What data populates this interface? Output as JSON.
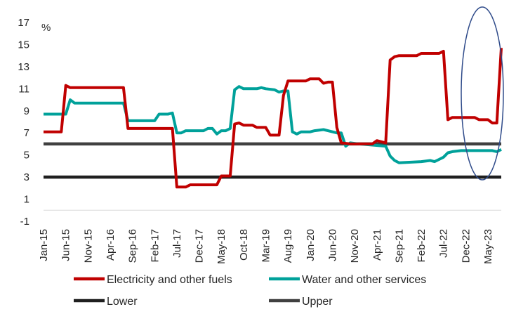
{
  "chart_data": {
    "type": "line",
    "ylabel": "%",
    "ylim": [
      -1,
      17
    ],
    "yticks": [
      "-1",
      "1",
      "3",
      "5",
      "7",
      "9",
      "11",
      "13",
      "15",
      "17"
    ],
    "xticks": [
      "Jan-15",
      "Jun-15",
      "Nov-15",
      "Apr-16",
      "Sep-16",
      "Feb-17",
      "Jul-17",
      "Dec-17",
      "May-18",
      "Oct-18",
      "Mar-19",
      "Aug-19",
      "Jan-20",
      "Jun-20",
      "Nov-20",
      "Apr-21",
      "Sep-21",
      "Feb-22",
      "Jul-22",
      "Dec-22",
      "May-23"
    ],
    "x_start": "Jan-15",
    "x_end": "Aug-23",
    "legend_position": "bottom",
    "annotation": "ellipse highlighting Oct-22 to Aug-23",
    "series": [
      {
        "name": "Electricity and other fuels",
        "color": "#C00000",
        "points": [
          [
            "Jan-15",
            7.1
          ],
          [
            "May-15",
            7.1
          ],
          [
            "Jun-15",
            11.3
          ],
          [
            "Jul-15",
            11.1
          ],
          [
            "Jul-16",
            11.1
          ],
          [
            "Aug-16",
            7.4
          ],
          [
            "Jun-17",
            7.4
          ],
          [
            "Jul-17",
            2.1
          ],
          [
            "Sep-17",
            2.1
          ],
          [
            "Oct-17",
            2.3
          ],
          [
            "Apr-18",
            2.3
          ],
          [
            "May-18",
            3.1
          ],
          [
            "Jul-18",
            3.1
          ],
          [
            "Aug-18",
            7.8
          ],
          [
            "Sep-18",
            7.9
          ],
          [
            "Oct-18",
            7.7
          ],
          [
            "Dec-18",
            7.7
          ],
          [
            "Jan-19",
            7.5
          ],
          [
            "Mar-19",
            7.5
          ],
          [
            "Apr-19",
            6.8
          ],
          [
            "Jun-19",
            6.8
          ],
          [
            "Jul-19",
            10.4
          ],
          [
            "Aug-19",
            11.7
          ],
          [
            "Dec-19",
            11.7
          ],
          [
            "Jan-20",
            11.9
          ],
          [
            "Mar-20",
            11.9
          ],
          [
            "Apr-20",
            11.5
          ],
          [
            "May-20",
            11.6
          ],
          [
            "Jun-20",
            11.6
          ],
          [
            "Jul-20",
            7.5
          ],
          [
            "Aug-20",
            6.1
          ],
          [
            "Oct-20",
            6.0
          ],
          [
            "Mar-21",
            6.0
          ],
          [
            "Apr-21",
            6.3
          ],
          [
            "Jun-21",
            6.1
          ],
          [
            "Jul-21",
            13.6
          ],
          [
            "Aug-21",
            13.9
          ],
          [
            "Sep-21",
            14.0
          ],
          [
            "Jan-22",
            14.0
          ],
          [
            "Feb-22",
            14.2
          ],
          [
            "Jun-22",
            14.2
          ],
          [
            "Jul-22",
            14.4
          ],
          [
            "Aug-22",
            8.2
          ],
          [
            "Sep-22",
            8.4
          ],
          [
            "Feb-23",
            8.4
          ],
          [
            "Mar-23",
            8.2
          ],
          [
            "May-23",
            8.2
          ],
          [
            "Jun-23",
            7.9
          ],
          [
            "Jul-23",
            7.9
          ],
          [
            "Aug-23",
            14.7
          ]
        ]
      },
      {
        "name": "Water and other services",
        "color": "#00A19A",
        "points": [
          [
            "Jan-15",
            8.7
          ],
          [
            "Jun-15",
            8.7
          ],
          [
            "Jul-15",
            10.0
          ],
          [
            "Aug-15",
            9.7
          ],
          [
            "Jul-16",
            9.7
          ],
          [
            "Aug-16",
            8.1
          ],
          [
            "Feb-17",
            8.1
          ],
          [
            "Mar-17",
            8.7
          ],
          [
            "May-17",
            8.7
          ],
          [
            "Jun-17",
            8.8
          ],
          [
            "Jul-17",
            7.0
          ],
          [
            "Aug-17",
            7.0
          ],
          [
            "Sep-17",
            7.2
          ],
          [
            "Jan-18",
            7.2
          ],
          [
            "Feb-18",
            7.4
          ],
          [
            "Mar-18",
            7.4
          ],
          [
            "Apr-18",
            6.9
          ],
          [
            "May-18",
            7.2
          ],
          [
            "Jun-18",
            7.2
          ],
          [
            "Jul-18",
            7.4
          ],
          [
            "Aug-18",
            10.9
          ],
          [
            "Sep-18",
            11.2
          ],
          [
            "Oct-18",
            11.0
          ],
          [
            "Jan-19",
            11.0
          ],
          [
            "Feb-19",
            11.1
          ],
          [
            "Mar-19",
            11.0
          ],
          [
            "May-19",
            10.9
          ],
          [
            "Jun-19",
            10.7
          ],
          [
            "Jul-19",
            10.8
          ],
          [
            "Aug-19",
            10.8
          ],
          [
            "Sep-19",
            7.1
          ],
          [
            "Oct-19",
            6.9
          ],
          [
            "Nov-19",
            7.1
          ],
          [
            "Jan-20",
            7.1
          ],
          [
            "Feb-20",
            7.2
          ],
          [
            "Apr-20",
            7.3
          ],
          [
            "May-20",
            7.2
          ],
          [
            "Jul-20",
            7.0
          ],
          [
            "Aug-20",
            7.0
          ],
          [
            "Sep-20",
            5.8
          ],
          [
            "Oct-20",
            6.1
          ],
          [
            "Dec-20",
            6.0
          ],
          [
            "Jun-21",
            5.8
          ],
          [
            "Jul-21",
            4.9
          ],
          [
            "Aug-21",
            4.5
          ],
          [
            "Sep-21",
            4.3
          ],
          [
            "Feb-22",
            4.4
          ],
          [
            "Apr-22",
            4.5
          ],
          [
            "May-22",
            4.4
          ],
          [
            "Jun-22",
            4.6
          ],
          [
            "Jul-22",
            4.8
          ],
          [
            "Aug-22",
            5.2
          ],
          [
            "Sep-22",
            5.3
          ],
          [
            "Nov-22",
            5.4
          ],
          [
            "Jun-23",
            5.4
          ],
          [
            "Jul-23",
            5.3
          ],
          [
            "Aug-23",
            5.5
          ]
        ]
      },
      {
        "name": "Lower",
        "color": "#1F1F1F",
        "points": [
          [
            "Jan-15",
            3
          ],
          [
            "Aug-23",
            3
          ]
        ]
      },
      {
        "name": "Upper",
        "color": "#404040",
        "points": [
          [
            "Jan-15",
            6
          ],
          [
            "Aug-23",
            6
          ]
        ]
      }
    ]
  }
}
